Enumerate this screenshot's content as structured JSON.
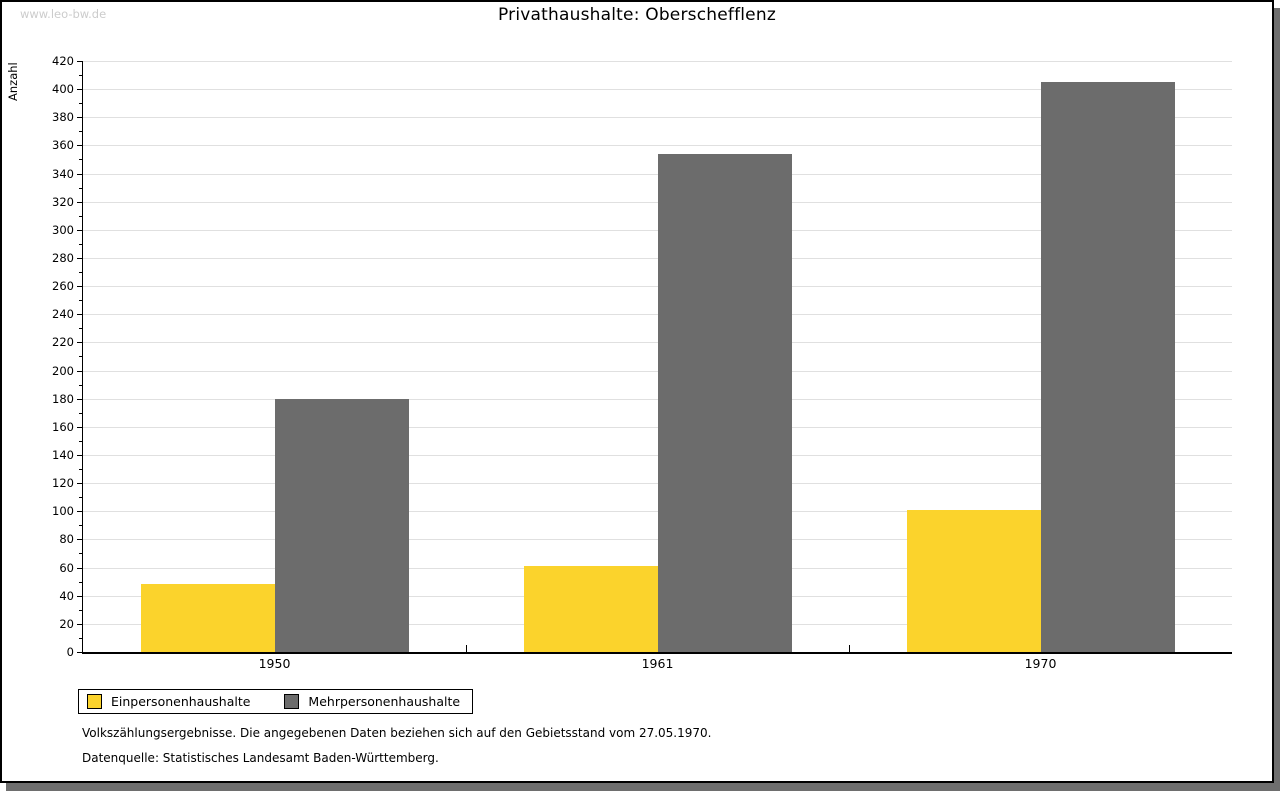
{
  "watermark": "www.leo-bw.de",
  "title": "Privathaushalte: Oberschefflenz",
  "chart_data": {
    "type": "bar",
    "title": "Privathaushalte: Oberschefflenz",
    "xlabel": "",
    "ylabel": "Anzahl",
    "categories": [
      "1950",
      "1961",
      "1970"
    ],
    "series": [
      {
        "name": "Einpersonenhaushalte",
        "color": "#FBD32C",
        "values": [
          48,
          61,
          101
        ]
      },
      {
        "name": "Mehrpersonenhaushalte",
        "color": "#6C6C6C",
        "values": [
          180,
          354,
          405
        ]
      }
    ],
    "ylim": [
      0,
      420
    ],
    "ytick_step": 20,
    "ytick_minor_step": 10,
    "grid": "horizontal-major",
    "legend_position": "bottom-left",
    "bar_colors": {
      "Einpersonenhaushalte": "#FBD32C",
      "Mehrpersonenhaushalte": "#6C6C6C"
    }
  },
  "footer": {
    "line1": "Volkszählungsergebnisse. Die angegebenen Daten beziehen sich auf den Gebietsstand vom 27.05.1970.",
    "line2": "Datenquelle: Statistisches Landesamt Baden-Württemberg."
  },
  "colors": {
    "background": "#ffffff",
    "panel_border": "#000000",
    "shadow": "#6e6e6e",
    "gridline": "#e0e0e0",
    "watermark": "#cccccc",
    "bar_yellow": "#FBD32C",
    "bar_gray": "#6C6C6C"
  }
}
